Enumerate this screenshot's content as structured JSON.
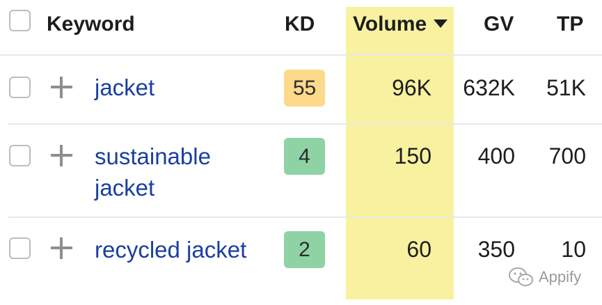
{
  "table": {
    "header": {
      "keyword": "Keyword",
      "kd": "KD",
      "volume": "Volume",
      "gv": "GV",
      "tp": "TP"
    },
    "rows": [
      {
        "keyword": "jacket",
        "kd": "55",
        "kd_color": "#fdd98b",
        "volume": "96K",
        "gv": "632K",
        "tp": "51K"
      },
      {
        "keyword": "sustainable jacket",
        "kd": "4",
        "kd_color": "#8fd3a5",
        "volume": "150",
        "gv": "400",
        "tp": "700"
      },
      {
        "keyword": "recycled jacket",
        "kd": "2",
        "kd_color": "#8fd3a5",
        "volume": "60",
        "gv": "350",
        "tp": "10"
      }
    ]
  },
  "watermark": {
    "text": "Appify"
  },
  "colors": {
    "volume_highlight": "#f8f1a0",
    "keyword_link": "#1a3fa0"
  }
}
